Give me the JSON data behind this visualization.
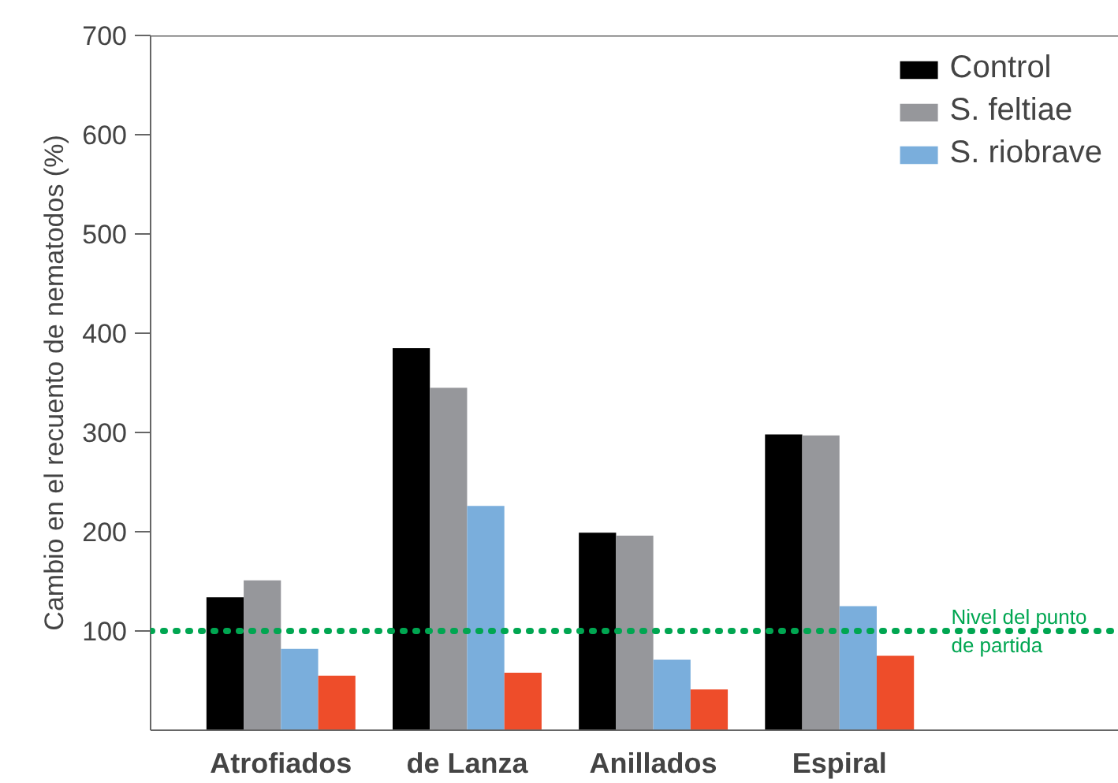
{
  "chart_data": {
    "type": "bar",
    "ylabel": "Cambio en el recuento de nematodos (%)",
    "categories": [
      "Atrofiados",
      "de Lanza",
      "Anillados",
      "Espiral"
    ],
    "series": [
      {
        "name": "Control",
        "color": "#000000",
        "values": [
          134,
          385,
          199,
          298
        ]
      },
      {
        "name": "S. feltiae",
        "color": "#96979b",
        "values": [
          151,
          345,
          196,
          297
        ]
      },
      {
        "name": "S. riobrave",
        "color": "#7aaedc",
        "values": [
          82,
          226,
          71,
          125
        ]
      },
      {
        "color": "#ee4d2a",
        "values": [
          55,
          58,
          41,
          75
        ]
      }
    ],
    "ylim": [
      0,
      700
    ],
    "yticks": [
      100,
      200,
      300,
      400,
      500,
      600,
      700
    ],
    "ref_lines": [
      {
        "axis": "y",
        "value": 100,
        "label": "Nivel del punto\nde partida",
        "color": "#00a651",
        "line_style": "dotted"
      }
    ],
    "grid": false,
    "legend": "top right"
  }
}
